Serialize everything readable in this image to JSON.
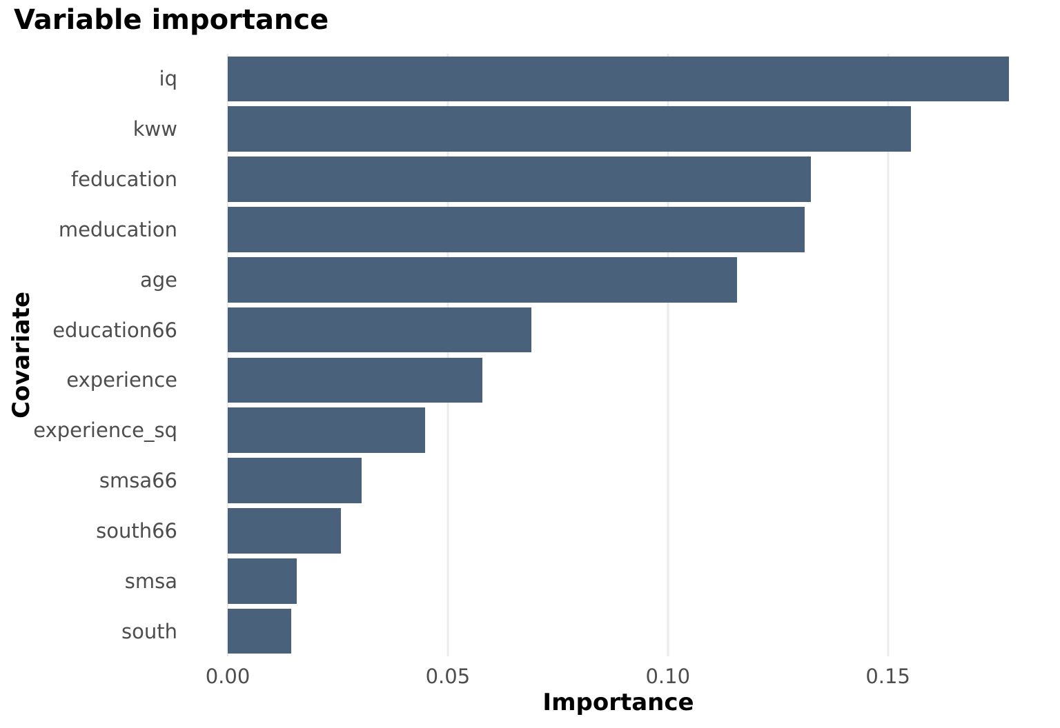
{
  "title": "Variable importance",
  "colors": {
    "bar_fill": "#4a617c",
    "gridline": "#ebebeb",
    "axis_text": "#4d4d4d",
    "title_text": "#000000",
    "background": "#ffffff"
  },
  "chart_data": {
    "type": "bar",
    "orientation": "horizontal",
    "title": "Variable importance",
    "xlabel": "Importance",
    "ylabel": "Covariate",
    "categories": [
      "iq",
      "kww",
      "feducation",
      "meducation",
      "age",
      "education66",
      "experience",
      "experience_sq",
      "smsa66",
      "south66",
      "smsa",
      "south"
    ],
    "values": [
      0.1775,
      0.1552,
      0.1325,
      0.1311,
      0.1157,
      0.069,
      0.0579,
      0.0448,
      0.0304,
      0.0257,
      0.0157,
      0.0144
    ],
    "xlim": [
      0,
      0.1775
    ],
    "xticks": [
      0.0,
      0.05,
      0.1,
      0.15
    ],
    "xtick_labels": [
      "0.00",
      "0.05",
      "0.10",
      "0.15"
    ],
    "grid": "vertical-major-only",
    "legend": "none",
    "bars_sorted": "descending"
  }
}
